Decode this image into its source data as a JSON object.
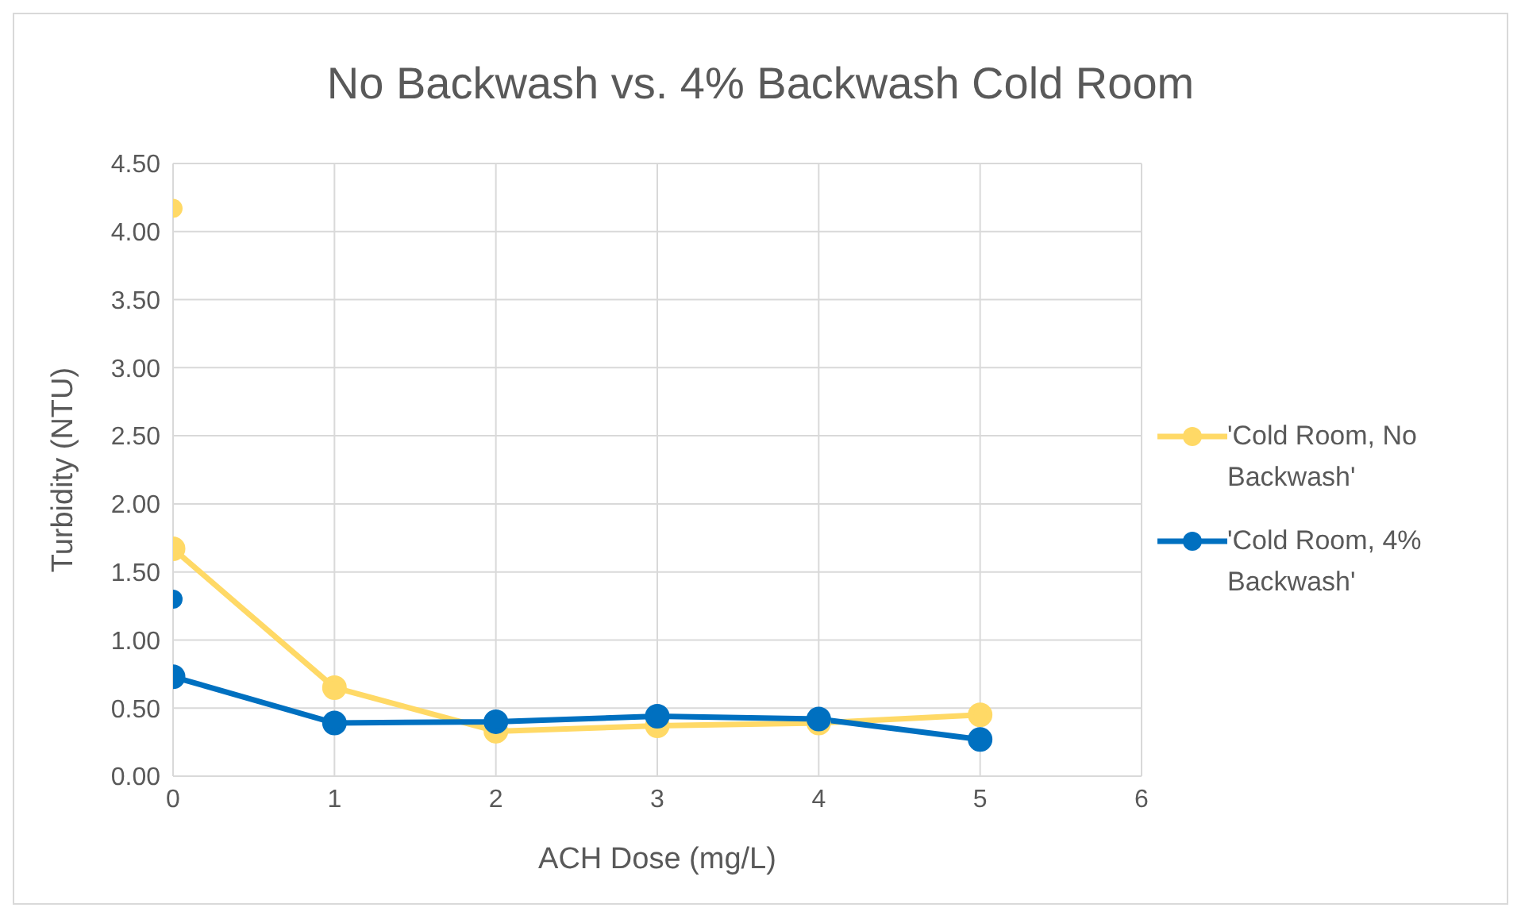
{
  "chart_data": {
    "type": "line",
    "title": "No Backwash vs. 4% Backwash Cold Room",
    "xlabel": "ACH Dose (mg/L)",
    "ylabel": "Turbidity (NTU)",
    "x": [
      0,
      1,
      2,
      3,
      4,
      5
    ],
    "series": [
      {
        "name": "'Cold Room, No Backwash'",
        "color": "#ffd966",
        "values": [
          1.67,
          0.65,
          0.33,
          0.37,
          0.39,
          0.45
        ]
      },
      {
        "name": "'Cold Room, 4% Backwash'",
        "color": "#0070c0",
        "values": [
          0.73,
          0.39,
          0.4,
          0.44,
          0.42,
          0.27
        ]
      },
      {
        "type": "scatter",
        "color": "#ffd966",
        "x": [
          0
        ],
        "values": [
          4.17
        ]
      },
      {
        "type": "scatter",
        "color": "#0070c0",
        "x": [
          0
        ],
        "values": [
          1.3
        ]
      }
    ],
    "xlim": [
      0,
      6
    ],
    "xticks": [
      0,
      1,
      2,
      3,
      4,
      5,
      6
    ],
    "ylim": [
      0,
      4.5
    ],
    "yticks": [
      {
        "value": 0,
        "label": "0.00"
      },
      {
        "value": 0.5,
        "label": "0.50"
      },
      {
        "value": 1,
        "label": "1.00"
      },
      {
        "value": 1.5,
        "label": "1.50"
      },
      {
        "value": 2,
        "label": "2.00"
      },
      {
        "value": 2.5,
        "label": "2.50"
      },
      {
        "value": 3,
        "label": "3.00"
      },
      {
        "value": 3.5,
        "label": "3.50"
      },
      {
        "value": 4,
        "label": "4.00"
      },
      {
        "value": 4.5,
        "label": "4.50"
      }
    ],
    "grid": true,
    "legend": "right",
    "marker": "circle",
    "line_style": "solid"
  }
}
